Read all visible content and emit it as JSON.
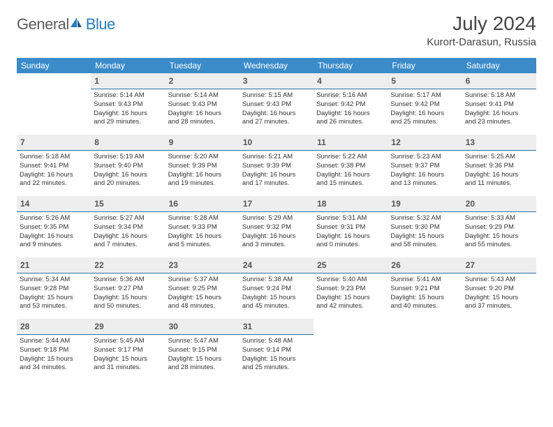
{
  "logo": {
    "part1": "General",
    "part2": "Blue"
  },
  "title": "July 2024",
  "location": "Kurort-Darasun, Russia",
  "colors": {
    "header_bg": "#3b8bc9",
    "header_text": "#ffffff",
    "daynum_bg": "#eeeeee",
    "daynum_border": "#2c6fa3",
    "logo_gray": "#5c5c5c",
    "logo_blue": "#2a7ab8",
    "body_text": "#333333",
    "page_bg": "#ffffff"
  },
  "weekdays": [
    "Sunday",
    "Monday",
    "Tuesday",
    "Wednesday",
    "Thursday",
    "Friday",
    "Saturday"
  ],
  "weeks": [
    [
      null,
      {
        "d": "1",
        "sr": "5:14 AM",
        "ss": "9:43 PM",
        "dl1": "16 hours",
        "dl2": "and 29 minutes."
      },
      {
        "d": "2",
        "sr": "5:14 AM",
        "ss": "9:43 PM",
        "dl1": "16 hours",
        "dl2": "and 28 minutes."
      },
      {
        "d": "3",
        "sr": "5:15 AM",
        "ss": "9:43 PM",
        "dl1": "16 hours",
        "dl2": "and 27 minutes."
      },
      {
        "d": "4",
        "sr": "5:16 AM",
        "ss": "9:42 PM",
        "dl1": "16 hours",
        "dl2": "and 26 minutes."
      },
      {
        "d": "5",
        "sr": "5:17 AM",
        "ss": "9:42 PM",
        "dl1": "16 hours",
        "dl2": "and 25 minutes."
      },
      {
        "d": "6",
        "sr": "5:18 AM",
        "ss": "9:41 PM",
        "dl1": "16 hours",
        "dl2": "and 23 minutes."
      }
    ],
    [
      {
        "d": "7",
        "sr": "5:18 AM",
        "ss": "9:41 PM",
        "dl1": "16 hours",
        "dl2": "and 22 minutes."
      },
      {
        "d": "8",
        "sr": "5:19 AM",
        "ss": "9:40 PM",
        "dl1": "16 hours",
        "dl2": "and 20 minutes."
      },
      {
        "d": "9",
        "sr": "5:20 AM",
        "ss": "9:39 PM",
        "dl1": "16 hours",
        "dl2": "and 19 minutes."
      },
      {
        "d": "10",
        "sr": "5:21 AM",
        "ss": "9:39 PM",
        "dl1": "16 hours",
        "dl2": "and 17 minutes."
      },
      {
        "d": "11",
        "sr": "5:22 AM",
        "ss": "9:38 PM",
        "dl1": "16 hours",
        "dl2": "and 15 minutes."
      },
      {
        "d": "12",
        "sr": "5:23 AM",
        "ss": "9:37 PM",
        "dl1": "16 hours",
        "dl2": "and 13 minutes."
      },
      {
        "d": "13",
        "sr": "5:25 AM",
        "ss": "9:36 PM",
        "dl1": "16 hours",
        "dl2": "and 11 minutes."
      }
    ],
    [
      {
        "d": "14",
        "sr": "5:26 AM",
        "ss": "9:35 PM",
        "dl1": "16 hours",
        "dl2": "and 9 minutes."
      },
      {
        "d": "15",
        "sr": "5:27 AM",
        "ss": "9:34 PM",
        "dl1": "16 hours",
        "dl2": "and 7 minutes."
      },
      {
        "d": "16",
        "sr": "5:28 AM",
        "ss": "9:33 PM",
        "dl1": "16 hours",
        "dl2": "and 5 minutes."
      },
      {
        "d": "17",
        "sr": "5:29 AM",
        "ss": "9:32 PM",
        "dl1": "16 hours",
        "dl2": "and 3 minutes."
      },
      {
        "d": "18",
        "sr": "5:31 AM",
        "ss": "9:31 PM",
        "dl1": "16 hours",
        "dl2": "and 0 minutes."
      },
      {
        "d": "19",
        "sr": "5:32 AM",
        "ss": "9:30 PM",
        "dl1": "15 hours",
        "dl2": "and 58 minutes."
      },
      {
        "d": "20",
        "sr": "5:33 AM",
        "ss": "9:29 PM",
        "dl1": "15 hours",
        "dl2": "and 55 minutes."
      }
    ],
    [
      {
        "d": "21",
        "sr": "5:34 AM",
        "ss": "9:28 PM",
        "dl1": "15 hours",
        "dl2": "and 53 minutes."
      },
      {
        "d": "22",
        "sr": "5:36 AM",
        "ss": "9:27 PM",
        "dl1": "15 hours",
        "dl2": "and 50 minutes."
      },
      {
        "d": "23",
        "sr": "5:37 AM",
        "ss": "9:25 PM",
        "dl1": "15 hours",
        "dl2": "and 48 minutes."
      },
      {
        "d": "24",
        "sr": "5:38 AM",
        "ss": "9:24 PM",
        "dl1": "15 hours",
        "dl2": "and 45 minutes."
      },
      {
        "d": "25",
        "sr": "5:40 AM",
        "ss": "9:23 PM",
        "dl1": "15 hours",
        "dl2": "and 42 minutes."
      },
      {
        "d": "26",
        "sr": "5:41 AM",
        "ss": "9:21 PM",
        "dl1": "15 hours",
        "dl2": "and 40 minutes."
      },
      {
        "d": "27",
        "sr": "5:43 AM",
        "ss": "9:20 PM",
        "dl1": "15 hours",
        "dl2": "and 37 minutes."
      }
    ],
    [
      {
        "d": "28",
        "sr": "5:44 AM",
        "ss": "9:18 PM",
        "dl1": "15 hours",
        "dl2": "and 34 minutes."
      },
      {
        "d": "29",
        "sr": "5:45 AM",
        "ss": "9:17 PM",
        "dl1": "15 hours",
        "dl2": "and 31 minutes."
      },
      {
        "d": "30",
        "sr": "5:47 AM",
        "ss": "9:15 PM",
        "dl1": "15 hours",
        "dl2": "and 28 minutes."
      },
      {
        "d": "31",
        "sr": "5:48 AM",
        "ss": "9:14 PM",
        "dl1": "15 hours",
        "dl2": "and 25 minutes."
      },
      null,
      null,
      null
    ]
  ],
  "labels": {
    "sunrise": "Sunrise:",
    "sunset": "Sunset:",
    "daylight": "Daylight:"
  }
}
